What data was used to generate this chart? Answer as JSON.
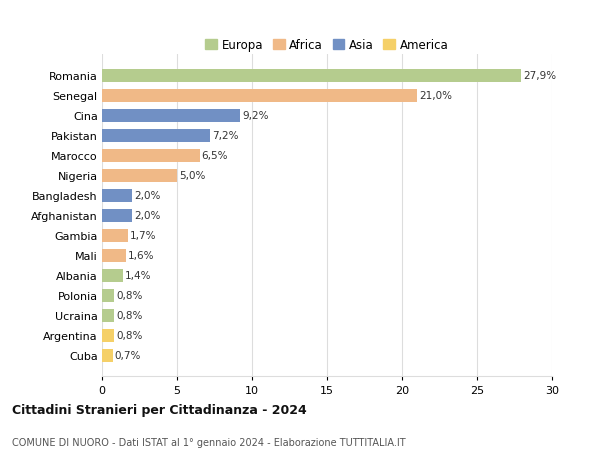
{
  "categories": [
    "Romania",
    "Senegal",
    "Cina",
    "Pakistan",
    "Marocco",
    "Nigeria",
    "Bangladesh",
    "Afghanistan",
    "Gambia",
    "Mali",
    "Albania",
    "Polonia",
    "Ucraina",
    "Argentina",
    "Cuba"
  ],
  "values": [
    27.9,
    21.0,
    9.2,
    7.2,
    6.5,
    5.0,
    2.0,
    2.0,
    1.7,
    1.6,
    1.4,
    0.8,
    0.8,
    0.8,
    0.7
  ],
  "labels": [
    "27,9%",
    "21,0%",
    "9,2%",
    "7,2%",
    "6,5%",
    "5,0%",
    "2,0%",
    "2,0%",
    "1,7%",
    "1,6%",
    "1,4%",
    "0,8%",
    "0,8%",
    "0,8%",
    "0,7%"
  ],
  "continents": [
    "Europa",
    "Africa",
    "Asia",
    "Asia",
    "Africa",
    "Africa",
    "Asia",
    "Asia",
    "Africa",
    "Africa",
    "Europa",
    "Europa",
    "Europa",
    "America",
    "America"
  ],
  "colors": {
    "Europa": "#b5cc8e",
    "Africa": "#f0b987",
    "Asia": "#7190c4",
    "America": "#f5d068"
  },
  "legend_order": [
    "Europa",
    "Africa",
    "Asia",
    "America"
  ],
  "title": "Cittadini Stranieri per Cittadinanza - 2024",
  "subtitle": "COMUNE DI NUORO - Dati ISTAT al 1° gennaio 2024 - Elaborazione TUTTITALIA.IT",
  "xlim": [
    0,
    30
  ],
  "xticks": [
    0,
    5,
    10,
    15,
    20,
    25,
    30
  ],
  "background_color": "#ffffff",
  "grid_color": "#dddddd",
  "bar_height": 0.65
}
